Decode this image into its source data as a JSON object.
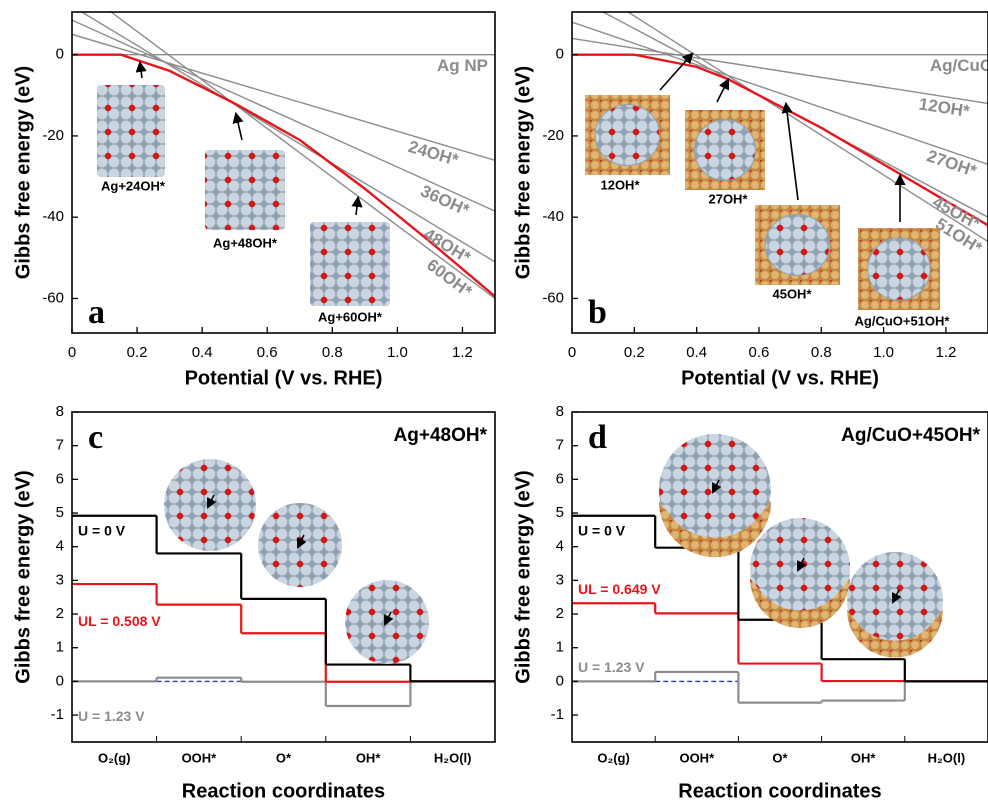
{
  "chart_data": [
    {
      "type": "line",
      "letter": "a",
      "xlabel": "Potential (V vs. RHE)",
      "ylabel": "Gibbs free energy (eV)",
      "xlim": [
        0,
        1.3
      ],
      "ylim": [
        -68.5,
        10.5
      ],
      "xticks": [
        0,
        0.2,
        0.4,
        0.6,
        0.8,
        {
          "value": 1,
          "label": "1.0"
        },
        1.2
      ],
      "yticks": [
        -60,
        -40,
        -20,
        0
      ],
      "series": [
        {
          "name": "Ag NP",
          "color": "#8c8c8c",
          "x": [
            0,
            1.3
          ],
          "values": [
            0,
            0
          ]
        },
        {
          "name": "24OH*",
          "color": "#8c8c8c",
          "x": [
            0,
            1.3
          ],
          "values": [
            5,
            -26
          ]
        },
        {
          "name": "36OH*",
          "color": "#8c8c8c",
          "x": [
            0,
            1.3
          ],
          "values": [
            8.5,
            -38.5
          ]
        },
        {
          "name": "48OH*",
          "color": "#8c8c8c",
          "x": [
            0.03,
            1.3
          ],
          "values": [
            10.5,
            -51
          ]
        },
        {
          "name": "60OH*",
          "color": "#8c8c8c",
          "x": [
            0.12,
            1.3
          ],
          "values": [
            10.5,
            -60
          ]
        },
        {
          "color": "#e8141c",
          "x": [
            0,
            0.15,
            0.3,
            0.5,
            0.7,
            0.9,
            1.1,
            1.3
          ],
          "values": [
            0,
            0,
            -4,
            -12,
            -21,
            -33,
            -46,
            -59.5
          ]
        }
      ],
      "structures": [
        "Ag+24OH*",
        "Ag+48OH*",
        "Ag+60OH*"
      ]
    },
    {
      "type": "line",
      "letter": "b",
      "xlabel": "Potential (V vs. RHE)",
      "ylabel": "Gibbs free energy (eV)",
      "xlim": [
        0,
        1.335
      ],
      "ylim": [
        -68.5,
        10.5
      ],
      "xticks": [
        0,
        0.2,
        0.4,
        0.6,
        0.8,
        {
          "value": 1,
          "label": "1.0"
        },
        1.2
      ],
      "yticks": [
        -60,
        -40,
        -20,
        0
      ],
      "series": [
        {
          "name": "Ag/CuO",
          "color": "#8c8c8c",
          "x": [
            0,
            1.335
          ],
          "values": [
            0,
            0
          ]
        },
        {
          "name": "12OH*",
          "color": "#8c8c8c",
          "x": [
            0,
            1.335
          ],
          "values": [
            4,
            -12
          ]
        },
        {
          "name": "27OH*",
          "color": "#8c8c8c",
          "x": [
            0,
            1.335
          ],
          "values": [
            8,
            -27
          ]
        },
        {
          "name": "45OH*",
          "color": "#8c8c8c",
          "x": [
            0.1,
            1.335
          ],
          "values": [
            10.5,
            -40
          ]
        },
        {
          "name": "51OH*",
          "color": "#8c8c8c",
          "x": [
            0.18,
            1.335
          ],
          "values": [
            10.5,
            -46
          ]
        },
        {
          "color": "#e8141c",
          "x": [
            0,
            0.2,
            0.4,
            0.5,
            0.6,
            0.8,
            1.0,
            1.2,
            1.335
          ],
          "values": [
            0,
            0,
            -3,
            -6,
            -10,
            -18,
            -27,
            -36,
            -42
          ]
        }
      ],
      "structures": [
        "12OH*",
        "27OH*",
        "45OH*",
        "Ag/CuO+51OH*"
      ]
    },
    {
      "type": "step",
      "letter": "c",
      "title": "Ag+48OH*",
      "xlabel": "Reaction coordinates",
      "ylabel": "Gibbs free energy (eV)",
      "categories": [
        "O₂(g)",
        "OOH*",
        "O*",
        "OH*",
        "H₂O(l)"
      ],
      "ylim": [
        -1.8,
        8
      ],
      "yticks": [
        -1,
        0,
        1,
        2,
        3,
        4,
        5,
        6,
        7,
        8
      ],
      "series": [
        {
          "name": "U = 0 V",
          "color": "#000000",
          "values": [
            4.92,
            3.8,
            2.45,
            0.5,
            0
          ]
        },
        {
          "name": "UL = 0.508 V",
          "color": "#e8141c",
          "values": [
            2.89,
            2.28,
            1.43,
            -0.01,
            0
          ]
        },
        {
          "name": "U = 1.23 V",
          "color": "#8c8c8c",
          "values": [
            0,
            0.11,
            -0.01,
            -0.73,
            0
          ]
        }
      ]
    },
    {
      "type": "step",
      "letter": "d",
      "title": "Ag/CuO+45OH*",
      "xlabel": "Reaction coordinates",
      "ylabel": "Gibbs free energy (eV)",
      "categories": [
        "O₂(g)",
        "OOH*",
        "O*",
        "OH*",
        "H₂O(l)"
      ],
      "ylim": [
        -1.8,
        8
      ],
      "yticks": [
        -1,
        0,
        1,
        2,
        3,
        4,
        5,
        6,
        7,
        8
      ],
      "series": [
        {
          "name": "U = 0 V",
          "color": "#000000",
          "values": [
            4.92,
            3.97,
            1.83,
            0.66,
            0
          ]
        },
        {
          "name": "UL = 0.649 V",
          "color": "#e8141c",
          "values": [
            2.32,
            2.02,
            0.53,
            0.01,
            0
          ]
        },
        {
          "name": "U = 1.23 V",
          "color": "#8c8c8c",
          "values": [
            0,
            0.28,
            -0.63,
            -0.57,
            0
          ]
        }
      ]
    }
  ]
}
